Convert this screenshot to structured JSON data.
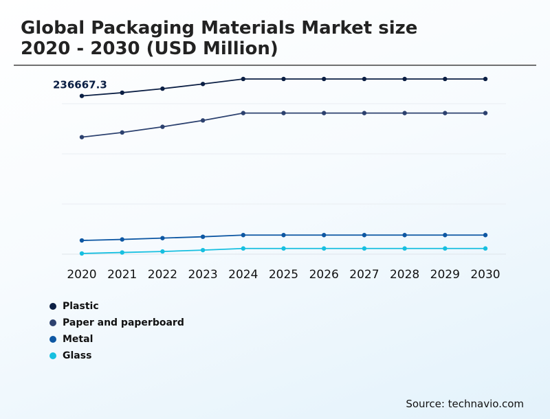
{
  "header": {
    "title_line1": "Global Packaging Materials Market size",
    "title_line2": "2020 - 2030 (USD Million)"
  },
  "footer": {
    "source": "Source: technavio.com"
  },
  "chart_data": {
    "type": "line",
    "x": [
      "2020",
      "2021",
      "2022",
      "2023",
      "2024",
      "2025",
      "2026",
      "2027",
      "2028",
      "2029",
      "2030"
    ],
    "ylim": [
      0,
      300000
    ],
    "grid": true,
    "legend_position": "bottom-left",
    "annotations": [
      {
        "series": "Plastic",
        "x": "2020",
        "text": "236667.3"
      }
    ],
    "series": [
      {
        "name": "Plastic",
        "color": "#0b1f44",
        "values": [
          236667.3,
          241500,
          247500,
          254500,
          262000,
          262000,
          262000,
          262000,
          262000,
          262000,
          262000
        ]
      },
      {
        "name": "Paper and paperboard",
        "color": "#2c416f",
        "values": [
          175000,
          182000,
          190500,
          200000,
          211000,
          211000,
          211000,
          211000,
          211000,
          211000,
          211000
        ]
      },
      {
        "name": "Metal",
        "color": "#0d57a3",
        "values": [
          20500,
          22000,
          24000,
          26000,
          28500,
          28500,
          28500,
          28500,
          28500,
          28500,
          28500
        ]
      },
      {
        "name": "Glass",
        "color": "#16bfe0",
        "values": [
          1000,
          2500,
          4000,
          6000,
          8500,
          8500,
          8500,
          8500,
          8500,
          8500,
          8500
        ]
      }
    ]
  }
}
